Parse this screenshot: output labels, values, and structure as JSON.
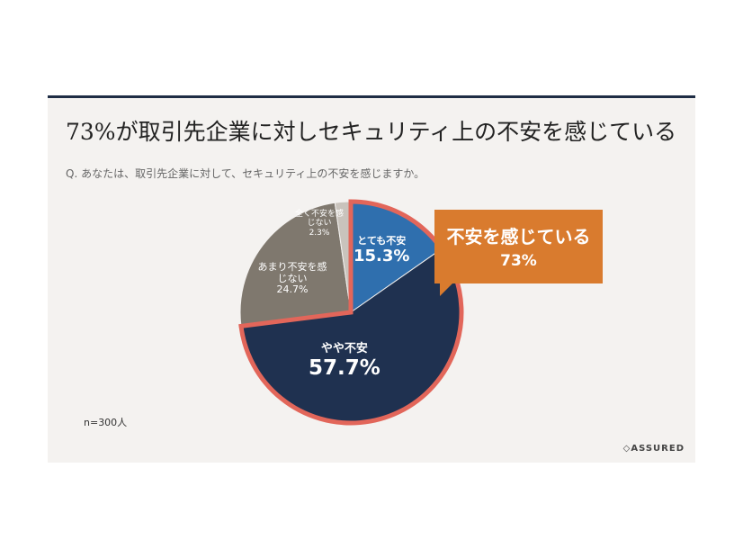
{
  "title": "73%が取引先企業に対しセキュリティ上の不安を感じている",
  "question": "Q. あなたは、取引先企業に対して、セキュリティ上の不安を感じますか。",
  "sample": "n=300人",
  "logo": "ASSURED",
  "callout": {
    "label": "不安を感じている",
    "value": "73%",
    "color": "#d97b2e"
  },
  "chart_data": {
    "type": "pie",
    "start": "top",
    "direction": "clockwise",
    "slices": [
      {
        "label": "とても不安",
        "value": 15.3,
        "text": "15.3%",
        "color": "#2f6fae"
      },
      {
        "label": "やや不安",
        "value": 57.7,
        "text": "57.7%",
        "color": "#1f3150"
      },
      {
        "label": "あまり不安を感じない",
        "value": 24.7,
        "text": "24.7%",
        "color": "#7f786e"
      },
      {
        "label": "全く不安を感じない",
        "value": 2.3,
        "text": "2.3%",
        "color": "#c9c3bc"
      }
    ],
    "highlight": {
      "slices": [
        "とても不安",
        "やや不安"
      ],
      "outline_color": "#e2665a"
    }
  }
}
